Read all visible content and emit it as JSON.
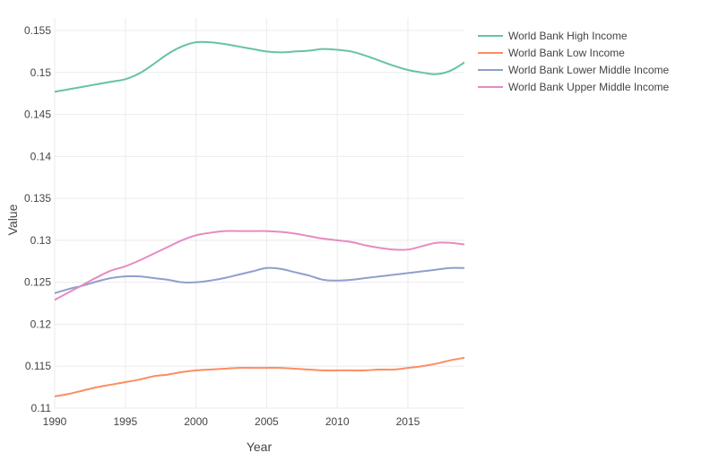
{
  "chart_data": {
    "type": "line",
    "title": "",
    "xlabel": "Year",
    "ylabel": "Value",
    "xlim": [
      1990,
      2019
    ],
    "ylim": [
      0.11,
      0.1565
    ],
    "xticks": [
      1990,
      1995,
      2000,
      2005,
      2010,
      2015
    ],
    "yticks": [
      0.11,
      0.115,
      0.12,
      0.125,
      0.13,
      0.135,
      0.14,
      0.145,
      0.15,
      0.155
    ],
    "ytick_labels": [
      "0.11",
      "0.115",
      "0.12",
      "0.125",
      "0.13",
      "0.135",
      "0.14",
      "0.145",
      "0.15",
      "0.155"
    ],
    "grid": true,
    "legend_position": "top-right",
    "x": [
      1990,
      1991,
      1992,
      1993,
      1994,
      1995,
      1996,
      1997,
      1998,
      1999,
      2000,
      2001,
      2002,
      2003,
      2004,
      2005,
      2006,
      2007,
      2008,
      2009,
      2010,
      2011,
      2012,
      2013,
      2014,
      2015,
      2016,
      2017,
      2018,
      2019
    ],
    "series": [
      {
        "name": "World Bank High Income",
        "color": "#66c2a5",
        "values": [
          0.1477,
          0.148,
          0.1483,
          0.1486,
          0.1489,
          0.1492,
          0.1499,
          0.151,
          0.1522,
          0.1531,
          0.1536,
          0.1536,
          0.1534,
          0.1531,
          0.1528,
          0.1525,
          0.1524,
          0.1525,
          0.1526,
          0.1528,
          0.1527,
          0.1525,
          0.152,
          0.1514,
          0.1508,
          0.1503,
          0.15,
          0.1498,
          0.1502,
          0.1512
        ]
      },
      {
        "name": "World Bank Low Income",
        "color": "#fc8d62",
        "values": [
          0.1114,
          0.1117,
          0.1121,
          0.1125,
          0.1128,
          0.1131,
          0.1134,
          0.1138,
          0.114,
          0.1143,
          0.1145,
          0.1146,
          0.1147,
          0.1148,
          0.1148,
          0.1148,
          0.1148,
          0.1147,
          0.1146,
          0.1145,
          0.1145,
          0.1145,
          0.1145,
          0.1146,
          0.1146,
          0.1148,
          0.115,
          0.1153,
          0.1157,
          0.116
        ]
      },
      {
        "name": "World Bank Lower Middle Income",
        "color": "#8da0cb",
        "values": [
          0.1237,
          0.1242,
          0.1246,
          0.1251,
          0.1255,
          0.1257,
          0.1257,
          0.1255,
          0.1253,
          0.125,
          0.125,
          0.1252,
          0.1255,
          0.1259,
          0.1263,
          0.1267,
          0.1266,
          0.1262,
          0.1258,
          0.1253,
          0.1252,
          0.1253,
          0.1255,
          0.1257,
          0.1259,
          0.1261,
          0.1263,
          0.1265,
          0.1267,
          0.1267
        ]
      },
      {
        "name": "World Bank Upper Middle Income",
        "color": "#e78ac3",
        "values": [
          0.1229,
          0.1238,
          0.1247,
          0.1256,
          0.1264,
          0.1269,
          0.1276,
          0.1284,
          0.1292,
          0.13,
          0.1306,
          0.1309,
          0.1311,
          0.1311,
          0.1311,
          0.1311,
          0.131,
          0.1308,
          0.1305,
          0.1302,
          0.13,
          0.1298,
          0.1294,
          0.1291,
          0.1289,
          0.1289,
          0.1293,
          0.1297,
          0.1297,
          0.1295
        ]
      }
    ]
  }
}
